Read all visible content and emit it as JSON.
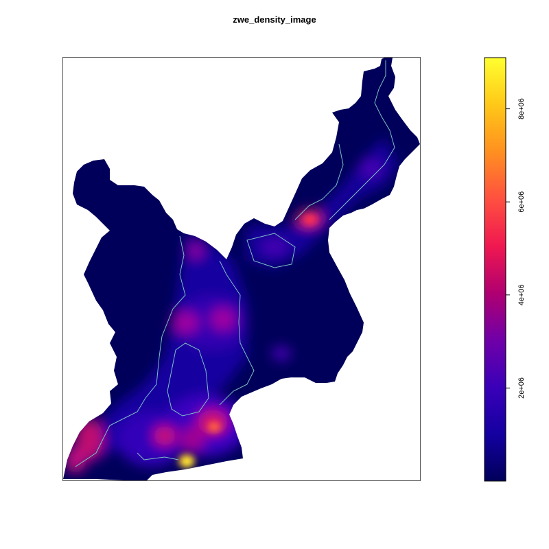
{
  "chart_data": {
    "type": "heatmap",
    "title": "zwe_density_image",
    "xlabel": "",
    "ylabel": "",
    "legend": {
      "placement": "right",
      "range": [
        0,
        9100000
      ],
      "ticks": [
        {
          "value": 2000000,
          "label": "2e+06"
        },
        {
          "value": 4000000,
          "label": "4e+06"
        },
        {
          "value": 6000000,
          "label": "6e+06"
        },
        {
          "value": 8000000,
          "label": "8e+06"
        }
      ],
      "colors": [
        "#00005a",
        "#1400a0",
        "#3a00b8",
        "#7000a8",
        "#b00070",
        "#f01850",
        "#ff5040",
        "#ff9020",
        "#ffc818",
        "#ffff30"
      ]
    },
    "contour_color": "#7ec0c4",
    "hotspots": [
      {
        "region": "south-west border",
        "value": 9000000
      },
      {
        "region": "south-centre",
        "value": 5500000
      },
      {
        "region": "south-west edge",
        "value": 4500000
      },
      {
        "region": "centre",
        "value": 4000000
      },
      {
        "region": "north-east",
        "value": 5000000
      },
      {
        "region": "north-west interior",
        "value": 3500000
      }
    ]
  }
}
